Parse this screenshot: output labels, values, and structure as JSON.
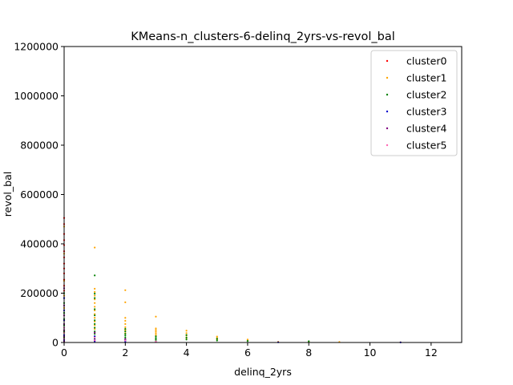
{
  "chart_data": {
    "type": "scatter",
    "title": "KMeans-n_clusters-6-delinq_2yrs-vs-revol_bal",
    "xlabel": "delinq_2yrs",
    "ylabel": "revol_bal",
    "xlim": [
      0,
      13
    ],
    "ylim": [
      0,
      1200000
    ],
    "x_ticks": [
      0,
      2,
      4,
      6,
      8,
      10,
      12
    ],
    "y_ticks": [
      0,
      200000,
      400000,
      600000,
      800000,
      1000000,
      1200000
    ],
    "grid": false,
    "legend_position": "top-right",
    "series": [
      {
        "name": "cluster0",
        "color": "#ff0000",
        "points": [
          [
            0,
            505000
          ],
          [
            0,
            480000
          ],
          [
            0,
            440000
          ],
          [
            0,
            415000
          ],
          [
            0,
            395000
          ],
          [
            0,
            370000
          ],
          [
            0,
            345000
          ],
          [
            0,
            320000
          ],
          [
            0,
            300000
          ],
          [
            0,
            280000
          ],
          [
            0,
            255000
          ],
          [
            0,
            230000
          ],
          [
            0,
            210000
          ]
        ]
      },
      {
        "name": "cluster1",
        "color": "#ffa500",
        "points": [
          [
            0,
            470000
          ],
          [
            0,
            360000
          ],
          [
            0,
            250000
          ],
          [
            0,
            190000
          ],
          [
            0,
            140000
          ],
          [
            0,
            90000
          ],
          [
            0,
            40000
          ],
          [
            1,
            385000
          ],
          [
            1,
            218000
          ],
          [
            1,
            205000
          ],
          [
            1,
            190000
          ],
          [
            1,
            175000
          ],
          [
            1,
            160000
          ],
          [
            1,
            145000
          ],
          [
            1,
            130000
          ],
          [
            1,
            115000
          ],
          [
            1,
            100000
          ],
          [
            1,
            85000
          ],
          [
            1,
            70000
          ],
          [
            1,
            55000
          ],
          [
            2,
            212000
          ],
          [
            2,
            163000
          ],
          [
            2,
            100000
          ],
          [
            2,
            88000
          ],
          [
            2,
            75000
          ],
          [
            2,
            62000
          ],
          [
            2,
            50000
          ],
          [
            2,
            38000
          ],
          [
            3,
            105000
          ],
          [
            3,
            57000
          ],
          [
            3,
            50000
          ],
          [
            3,
            43000
          ],
          [
            3,
            36000
          ],
          [
            3,
            29000
          ],
          [
            4,
            48000
          ],
          [
            4,
            38000
          ],
          [
            4,
            28000
          ],
          [
            4,
            18000
          ],
          [
            5,
            24000
          ],
          [
            5,
            18000
          ],
          [
            5,
            12000
          ],
          [
            6,
            12000
          ],
          [
            6,
            8000
          ],
          [
            7,
            3000
          ],
          [
            8,
            4000
          ],
          [
            9,
            2000
          ],
          [
            11,
            1000
          ]
        ]
      },
      {
        "name": "cluster2",
        "color": "#008000",
        "points": [
          [
            0,
            200000
          ],
          [
            0,
            160000
          ],
          [
            0,
            120000
          ],
          [
            0,
            95000
          ],
          [
            0,
            70000
          ],
          [
            0,
            45000
          ],
          [
            0,
            20000
          ],
          [
            1,
            272000
          ],
          [
            1,
            198000
          ],
          [
            1,
            180000
          ],
          [
            1,
            135000
          ],
          [
            1,
            110000
          ],
          [
            1,
            90000
          ],
          [
            1,
            75000
          ],
          [
            1,
            60000
          ],
          [
            1,
            45000
          ],
          [
            1,
            35000
          ],
          [
            1,
            25000
          ],
          [
            1,
            15000
          ],
          [
            2,
            55000
          ],
          [
            2,
            45000
          ],
          [
            2,
            35000
          ],
          [
            2,
            28000
          ],
          [
            2,
            20000
          ],
          [
            2,
            12000
          ],
          [
            3,
            25000
          ],
          [
            3,
            18000
          ],
          [
            3,
            12000
          ],
          [
            3,
            6000
          ],
          [
            4,
            30000
          ],
          [
            4,
            20000
          ],
          [
            4,
            12000
          ],
          [
            5,
            15000
          ],
          [
            5,
            8000
          ],
          [
            6,
            6000
          ],
          [
            8,
            5000
          ]
        ]
      },
      {
        "name": "cluster3",
        "color": "#0000cd",
        "points": [
          [
            0,
            180000
          ],
          [
            0,
            130000
          ],
          [
            0,
            90000
          ],
          [
            0,
            60000
          ],
          [
            0,
            30000
          ],
          [
            0,
            10000
          ],
          [
            1,
            25000
          ],
          [
            1,
            12000
          ],
          [
            1,
            5000
          ],
          [
            2,
            8000
          ],
          [
            2,
            3000
          ],
          [
            3,
            3000
          ],
          [
            7,
            1000
          ],
          [
            11,
            500
          ]
        ]
      },
      {
        "name": "cluster4",
        "color": "#800080",
        "points": [
          [
            0,
            220000
          ],
          [
            0,
            150000
          ],
          [
            0,
            110000
          ],
          [
            0,
            75000
          ],
          [
            0,
            50000
          ],
          [
            0,
            25000
          ],
          [
            0,
            5000
          ],
          [
            1,
            40000
          ],
          [
            1,
            8000
          ],
          [
            2,
            14000
          ],
          [
            3,
            2000
          ]
        ]
      },
      {
        "name": "cluster5",
        "color": "#ff69b4",
        "points": [
          [
            0,
            60000
          ],
          [
            0,
            40000
          ],
          [
            0,
            15000
          ],
          [
            1,
            20000
          ],
          [
            1,
            10000
          ],
          [
            2,
            8000
          ],
          [
            3,
            4000
          ]
        ]
      }
    ]
  }
}
